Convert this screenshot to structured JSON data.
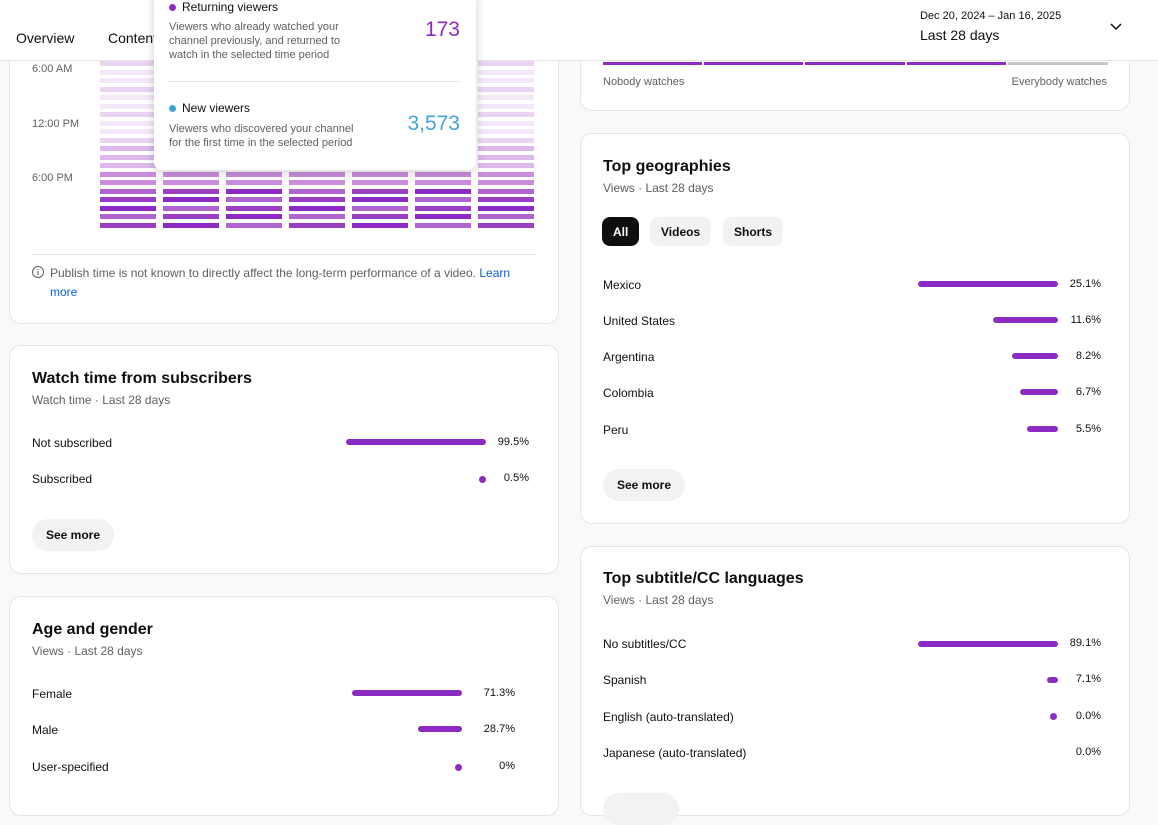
{
  "tabs": [
    "Overview",
    "Content"
  ],
  "date_range": {
    "range": "Dec 20, 2024 – Jan 16, 2025",
    "period": "Last 28 days"
  },
  "colors": {
    "accent": "#8b2bc4",
    "new_viewers": "#3ea6d6",
    "returning": "#8b2bc4"
  },
  "publish_time": {
    "time_labels": [
      "6:00 AM",
      "12:00 PM",
      "6:00 PM"
    ],
    "note": "Publish time is not known to directly affect the long-term performance of a video.",
    "learn_more": "Learn more"
  },
  "tooltip": {
    "returning": {
      "title": "Returning viewers",
      "desc": "Viewers who already watched your channel previously, and returned to watch in the selected time period",
      "value": "173"
    },
    "new": {
      "title": "New viewers",
      "desc": "Viewers who discovered your channel for the first time in the selected period",
      "value": "3,573"
    }
  },
  "watch_time_subscribers": {
    "title": "Watch time from subscribers",
    "subtitle": "Watch time · Last 28 days",
    "rows": [
      {
        "label": "Not subscribed",
        "pct": "99.5%",
        "value": 99.5
      },
      {
        "label": "Subscribed",
        "pct": "0.5%",
        "value": 0.5
      }
    ],
    "see_more": "See more"
  },
  "age_gender": {
    "title": "Age and gender",
    "subtitle": "Views · Last 28 days",
    "rows": [
      {
        "label": "Female",
        "pct": "71.3%",
        "value": 71.3
      },
      {
        "label": "Male",
        "pct": "28.7%",
        "value": 28.7
      },
      {
        "label": "User-specified",
        "pct": "0%",
        "value": 0
      }
    ]
  },
  "frequency_scale": {
    "left": "Nobody watches",
    "right": "Everybody watches"
  },
  "top_geographies": {
    "title": "Top geographies",
    "subtitle": "Views · Last 28 days",
    "chips": [
      "All",
      "Videos",
      "Shorts"
    ],
    "rows": [
      {
        "label": "Mexico",
        "pct": "25.1%",
        "value": 25.1
      },
      {
        "label": "United States",
        "pct": "11.6%",
        "value": 11.6
      },
      {
        "label": "Argentina",
        "pct": "8.2%",
        "value": 8.2
      },
      {
        "label": "Colombia",
        "pct": "6.7%",
        "value": 6.7
      },
      {
        "label": "Peru",
        "pct": "5.5%",
        "value": 5.5
      }
    ],
    "see_more": "See more"
  },
  "top_subtitles": {
    "title": "Top subtitle/CC languages",
    "subtitle": "Views · Last 28 days",
    "rows": [
      {
        "label": "No subtitles/CC",
        "pct": "89.1%",
        "value": 89.1
      },
      {
        "label": "Spanish",
        "pct": "7.1%",
        "value": 7.1
      },
      {
        "label": "English (auto-translated)",
        "pct": "0.0%",
        "value": 0.0
      },
      {
        "label": "Japanese (auto-translated)",
        "pct": "0.0%",
        "value": 0.0
      }
    ]
  }
}
